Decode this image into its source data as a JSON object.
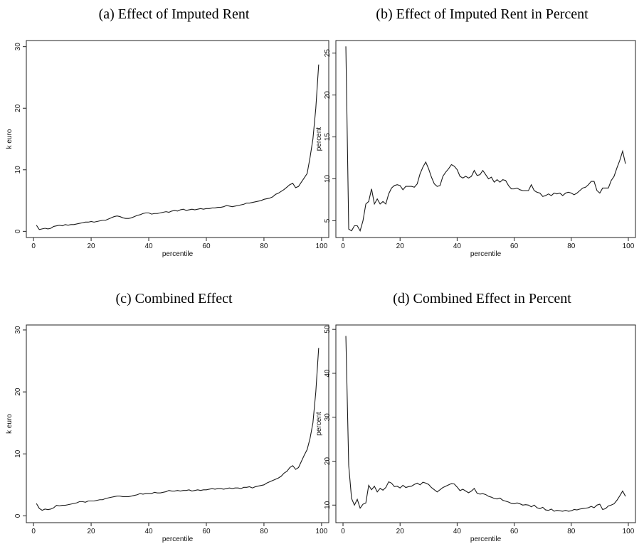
{
  "chart_data": [
    {
      "type": "line",
      "title": "(a) Effect of Imputed Rent",
      "x_label": "percentile",
      "y_label": "k euro",
      "color": "#1a1a1a",
      "xlim": [
        -2.5,
        102.5
      ],
      "ylim": [
        -1,
        31
      ],
      "xticks": [
        0,
        20,
        40,
        60,
        80,
        100
      ],
      "yticks": [
        0,
        10,
        20,
        30
      ],
      "x": [
        1,
        2,
        3,
        4,
        5,
        6,
        7,
        8,
        9,
        10,
        11,
        12,
        13,
        14,
        15,
        16,
        17,
        18,
        19,
        20,
        21,
        22,
        23,
        24,
        25,
        26,
        27,
        28,
        29,
        30,
        31,
        32,
        33,
        34,
        35,
        36,
        37,
        38,
        39,
        40,
        41,
        42,
        43,
        44,
        45,
        46,
        47,
        48,
        49,
        50,
        51,
        52,
        53,
        54,
        55,
        56,
        57,
        58,
        59,
        60,
        61,
        62,
        63,
        64,
        65,
        66,
        67,
        68,
        69,
        70,
        71,
        72,
        73,
        74,
        75,
        76,
        77,
        78,
        79,
        80,
        81,
        82,
        83,
        84,
        85,
        86,
        87,
        88,
        89,
        90,
        91,
        92,
        93,
        94,
        95,
        96,
        97,
        98,
        99
      ],
      "values": [
        1.0,
        0.3,
        0.4,
        0.5,
        0.4,
        0.5,
        0.8,
        0.9,
        1.0,
        0.9,
        1.1,
        1.0,
        1.1,
        1.1,
        1.2,
        1.3,
        1.4,
        1.5,
        1.5,
        1.6,
        1.5,
        1.6,
        1.7,
        1.8,
        1.8,
        2.0,
        2.2,
        2.4,
        2.5,
        2.4,
        2.2,
        2.1,
        2.1,
        2.2,
        2.4,
        2.6,
        2.7,
        2.9,
        3.0,
        3.0,
        2.8,
        2.9,
        2.9,
        3.0,
        3.1,
        3.2,
        3.1,
        3.3,
        3.4,
        3.3,
        3.5,
        3.6,
        3.4,
        3.5,
        3.6,
        3.5,
        3.6,
        3.7,
        3.6,
        3.7,
        3.7,
        3.8,
        3.8,
        3.9,
        3.9,
        4.0,
        4.2,
        4.1,
        4.0,
        4.1,
        4.2,
        4.3,
        4.4,
        4.6,
        4.6,
        4.7,
        4.8,
        4.9,
        5.0,
        5.2,
        5.3,
        5.4,
        5.6,
        6.0,
        6.2,
        6.5,
        6.8,
        7.2,
        7.6,
        7.8,
        7.1,
        7.3,
        8.0,
        8.7,
        9.4,
        12,
        15,
        20,
        27.1
      ]
    },
    {
      "type": "line",
      "title": "(b) Effect of Imputed Rent in Percent",
      "x_label": "percentile",
      "y_label": "percent",
      "color": "#1a1a1a",
      "xlim": [
        -2.5,
        102.5
      ],
      "ylim": [
        3,
        26.5
      ],
      "xticks": [
        0,
        20,
        40,
        60,
        80,
        100
      ],
      "yticks": [
        5,
        10,
        15,
        20,
        25
      ],
      "x": [
        1,
        2,
        3,
        4,
        5,
        6,
        7,
        8,
        9,
        10,
        11,
        12,
        13,
        14,
        15,
        16,
        17,
        18,
        19,
        20,
        21,
        22,
        23,
        24,
        25,
        26,
        27,
        28,
        29,
        30,
        31,
        32,
        33,
        34,
        35,
        36,
        37,
        38,
        39,
        40,
        41,
        42,
        43,
        44,
        45,
        46,
        47,
        48,
        49,
        50,
        51,
        52,
        53,
        54,
        55,
        56,
        57,
        58,
        59,
        60,
        61,
        62,
        63,
        64,
        65,
        66,
        67,
        68,
        69,
        70,
        71,
        72,
        73,
        74,
        75,
        76,
        77,
        78,
        79,
        80,
        81,
        82,
        83,
        84,
        85,
        86,
        87,
        88,
        89,
        90,
        91,
        92,
        93,
        94,
        95,
        96,
        97,
        98,
        99
      ],
      "values": [
        25.8,
        4.0,
        3.8,
        4.4,
        4.4,
        3.8,
        5.0,
        7.0,
        7.3,
        8.8,
        7.0,
        7.6,
        7.0,
        7.3,
        7.0,
        8.2,
        8.9,
        9.2,
        9.3,
        9.2,
        8.7,
        9.1,
        9.1,
        9.1,
        9.0,
        9.4,
        10.6,
        11.4,
        12.0,
        11.2,
        10.2,
        9.4,
        9.1,
        9.2,
        10.3,
        10.8,
        11.2,
        11.7,
        11.5,
        11.1,
        10.3,
        10.1,
        10.3,
        10.1,
        10.3,
        11.0,
        10.4,
        10.5,
        11.0,
        10.5,
        10.0,
        10.2,
        9.6,
        9.9,
        9.6,
        9.9,
        9.8,
        9.2,
        8.8,
        8.8,
        8.9,
        8.7,
        8.6,
        8.6,
        8.6,
        9.3,
        8.6,
        8.4,
        8.3,
        7.9,
        8.0,
        8.2,
        8.0,
        8.3,
        8.2,
        8.3,
        8.0,
        8.3,
        8.4,
        8.3,
        8.1,
        8.3,
        8.6,
        8.9,
        9.0,
        9.3,
        9.7,
        9.7,
        8.6,
        8.3,
        8.9,
        8.9,
        8.9,
        9.8,
        10.3,
        11.3,
        12.2,
        13.3,
        11.8
      ]
    },
    {
      "type": "line",
      "title": "(c) Combined Effect",
      "x_label": "percentile",
      "y_label": "k euro",
      "color": "#1a1a1a",
      "xlim": [
        -2.5,
        102.5
      ],
      "ylim": [
        -1.1,
        30.8
      ],
      "xticks": [
        0,
        20,
        40,
        60,
        80,
        100
      ],
      "yticks": [
        0,
        10,
        20,
        30
      ],
      "x": [
        1,
        2,
        3,
        4,
        5,
        6,
        7,
        8,
        9,
        10,
        11,
        12,
        13,
        14,
        15,
        16,
        17,
        18,
        19,
        20,
        21,
        22,
        23,
        24,
        25,
        26,
        27,
        28,
        29,
        30,
        31,
        32,
        33,
        34,
        35,
        36,
        37,
        38,
        39,
        40,
        41,
        42,
        43,
        44,
        45,
        46,
        47,
        48,
        49,
        50,
        51,
        52,
        53,
        54,
        55,
        56,
        57,
        58,
        59,
        60,
        61,
        62,
        63,
        64,
        65,
        66,
        67,
        68,
        69,
        70,
        71,
        72,
        73,
        74,
        75,
        76,
        77,
        78,
        79,
        80,
        81,
        82,
        83,
        84,
        85,
        86,
        87,
        88,
        89,
        90,
        91,
        92,
        93,
        94,
        95,
        96,
        97,
        98,
        99
      ],
      "values": [
        2.0,
        1.2,
        0.9,
        1.1,
        1.0,
        1.1,
        1.3,
        1.7,
        1.6,
        1.7,
        1.7,
        1.8,
        1.9,
        2.0,
        2.1,
        2.3,
        2.3,
        2.2,
        2.4,
        2.4,
        2.4,
        2.5,
        2.6,
        2.6,
        2.8,
        2.9,
        3.0,
        3.1,
        3.2,
        3.2,
        3.1,
        3.1,
        3.1,
        3.2,
        3.3,
        3.4,
        3.6,
        3.5,
        3.6,
        3.6,
        3.6,
        3.8,
        3.7,
        3.7,
        3.8,
        3.9,
        4.1,
        4.0,
        4.0,
        4.1,
        4.0,
        4.1,
        4.1,
        4.2,
        4.0,
        4.1,
        4.2,
        4.1,
        4.2,
        4.2,
        4.3,
        4.4,
        4.3,
        4.4,
        4.4,
        4.3,
        4.4,
        4.5,
        4.4,
        4.5,
        4.5,
        4.4,
        4.6,
        4.6,
        4.7,
        4.5,
        4.7,
        4.8,
        4.9,
        5.0,
        5.3,
        5.5,
        5.7,
        5.9,
        6.1,
        6.4,
        6.9,
        7.2,
        7.8,
        8.1,
        7.5,
        7.8,
        8.8,
        9.8,
        10.7,
        12.5,
        15.0,
        20.0,
        27.1
      ]
    },
    {
      "type": "line",
      "title": "(d) Combined Effect in Percent",
      "x_label": "percentile",
      "y_label": "percent",
      "color": "#1a1a1a",
      "xlim": [
        -2.5,
        102.5
      ],
      "ylim": [
        6,
        51
      ],
      "xticks": [
        0,
        20,
        40,
        60,
        80,
        100
      ],
      "yticks": [
        10,
        20,
        30,
        40,
        50
      ],
      "x": [
        1,
        2,
        3,
        4,
        5,
        6,
        7,
        8,
        9,
        10,
        11,
        12,
        13,
        14,
        15,
        16,
        17,
        18,
        19,
        20,
        21,
        22,
        23,
        24,
        25,
        26,
        27,
        28,
        29,
        30,
        31,
        32,
        33,
        34,
        35,
        36,
        37,
        38,
        39,
        40,
        41,
        42,
        43,
        44,
        45,
        46,
        47,
        48,
        49,
        50,
        51,
        52,
        53,
        54,
        55,
        56,
        57,
        58,
        59,
        60,
        61,
        62,
        63,
        64,
        65,
        66,
        67,
        68,
        69,
        70,
        71,
        72,
        73,
        74,
        75,
        76,
        77,
        78,
        79,
        80,
        81,
        82,
        83,
        84,
        85,
        86,
        87,
        88,
        89,
        90,
        91,
        92,
        93,
        94,
        95,
        96,
        97,
        98,
        99
      ],
      "values": [
        48.5,
        19.0,
        11.5,
        10.0,
        11.3,
        9.3,
        10.2,
        10.5,
        14.5,
        13.5,
        14.3,
        13.0,
        13.8,
        13.4,
        14.0,
        15.3,
        15.0,
        14.2,
        14.3,
        13.9,
        14.5,
        14.0,
        14.2,
        14.3,
        14.7,
        15.0,
        14.6,
        15.2,
        15.0,
        14.7,
        14.0,
        13.5,
        13.0,
        13.5,
        14.0,
        14.3,
        14.6,
        14.9,
        14.8,
        14.1,
        13.3,
        13.6,
        13.2,
        12.8,
        13.2,
        13.8,
        12.7,
        12.5,
        12.6,
        12.4,
        12.0,
        11.8,
        11.5,
        11.4,
        11.6,
        11.1,
        10.9,
        10.7,
        10.4,
        10.3,
        10.5,
        10.3,
        10.0,
        10.1,
        10.0,
        9.6,
        10.0,
        9.4,
        9.2,
        9.5,
        8.9,
        8.8,
        9.1,
        8.6,
        8.8,
        8.7,
        8.6,
        8.8,
        8.6,
        8.7,
        9.0,
        8.9,
        9.1,
        9.2,
        9.3,
        9.4,
        9.7,
        9.4,
        10.0,
        10.2,
        9.0,
        9.2,
        9.8,
        10.0,
        10.3,
        11.1,
        12.1,
        13.2,
        12.0
      ]
    }
  ]
}
